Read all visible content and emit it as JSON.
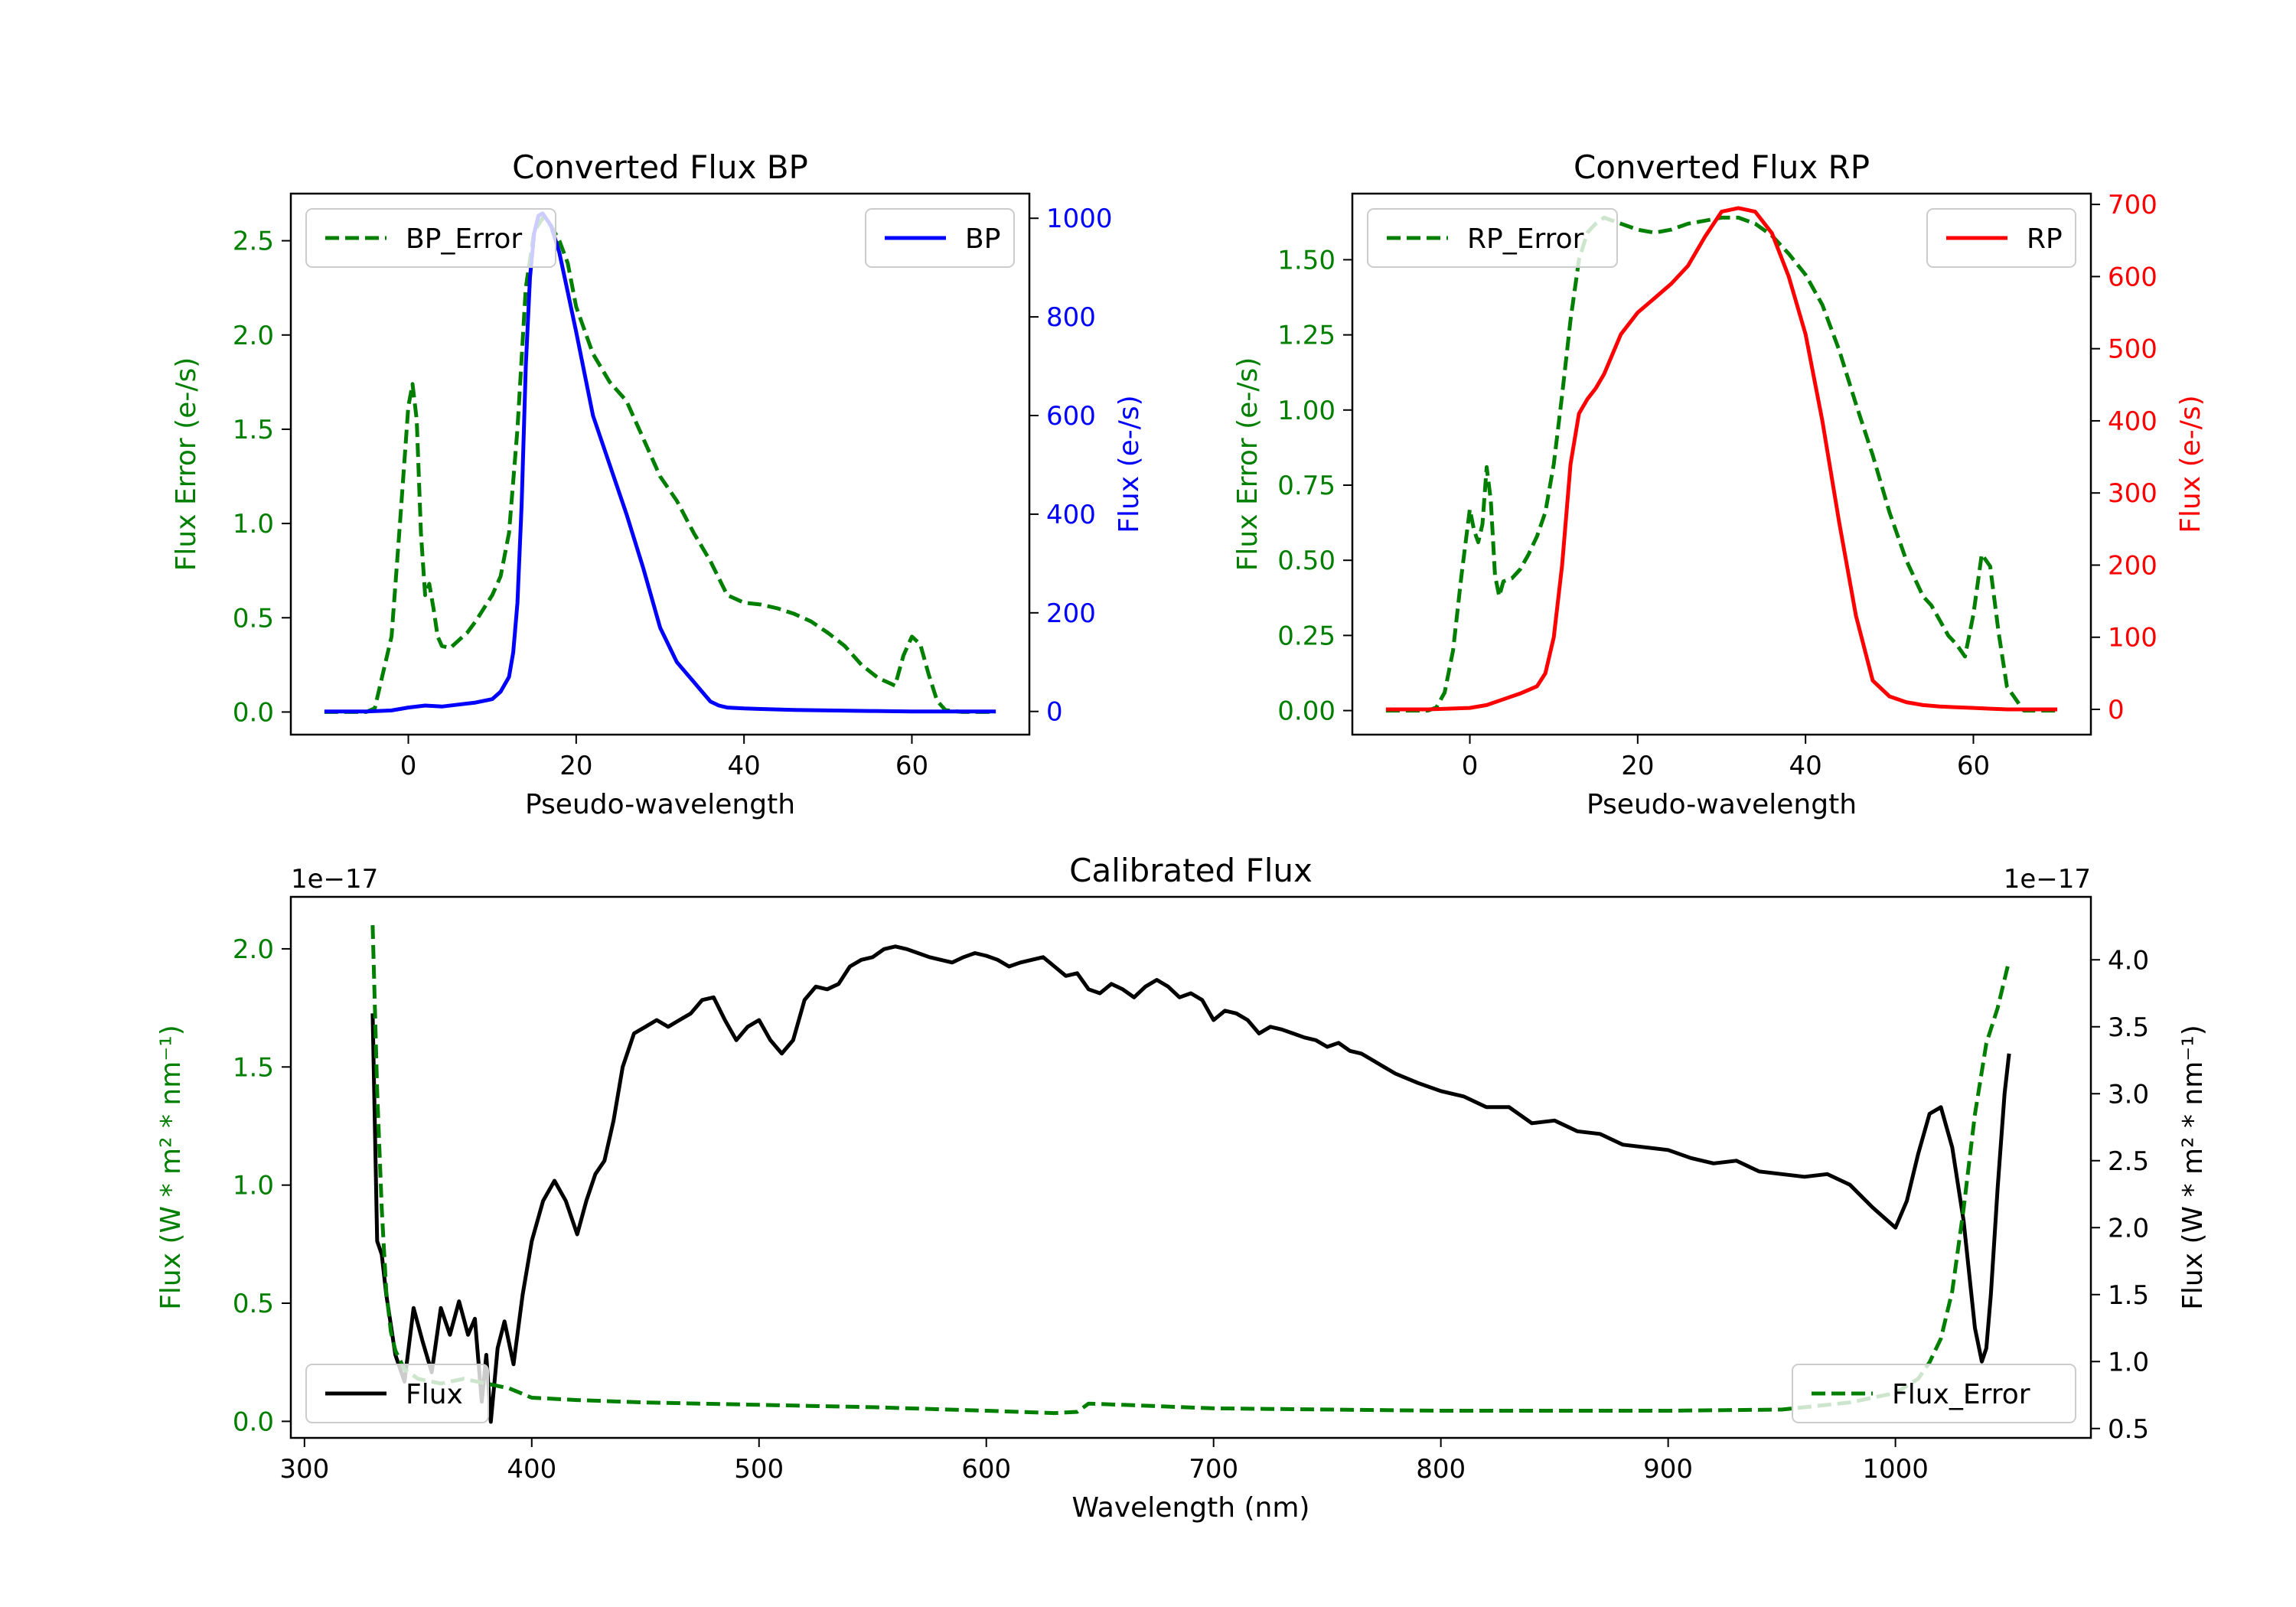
{
  "colors": {
    "error": "#007f00",
    "bp": "#0000ff",
    "rp": "#ff0000",
    "flux": "#000000"
  },
  "chart_data": [
    {
      "type": "line",
      "title": "Converted Flux BP",
      "xlabel": "Pseudo-wavelength",
      "ylabel_left": "Flux Error (e-/s)",
      "ylabel_right": "Flux (e-/s)",
      "xlim": [
        -14,
        74
      ],
      "ylim_left": [
        -0.12,
        2.75
      ],
      "ylim_right": [
        -47,
        1050
      ],
      "xticks": [
        0,
        20,
        40,
        60
      ],
      "yticks_left": [
        0.0,
        0.5,
        1.0,
        1.5,
        2.0,
        2.5
      ],
      "yticks_left_labels": [
        "0.0",
        "0.5",
        "1.0",
        "1.5",
        "2.0",
        "2.5"
      ],
      "yticks_right": [
        0,
        200,
        400,
        600,
        800,
        1000
      ],
      "series": [
        {
          "name": "BP_Error",
          "axis": "left",
          "style": "dashed",
          "color_key": "error",
          "x": [
            -10,
            -5,
            -4,
            -2,
            -1,
            0,
            0.5,
            1,
            1.5,
            2,
            2.5,
            3,
            3.5,
            4,
            5,
            6,
            7,
            8,
            10,
            11,
            12,
            13,
            14,
            15,
            16,
            17,
            18,
            19,
            20,
            22,
            24,
            26,
            28,
            30,
            32,
            34,
            36,
            38,
            40,
            42,
            44,
            46,
            48,
            50,
            52,
            54,
            56,
            57,
            58,
            59,
            60,
            61,
            62,
            63,
            64,
            66,
            70
          ],
          "values": [
            0,
            0,
            0.02,
            0.4,
            1.0,
            1.62,
            1.74,
            1.55,
            0.95,
            0.62,
            0.68,
            0.55,
            0.4,
            0.35,
            0.34,
            0.38,
            0.42,
            0.48,
            0.62,
            0.72,
            0.95,
            1.5,
            2.25,
            2.55,
            2.62,
            2.58,
            2.5,
            2.38,
            2.15,
            1.9,
            1.75,
            1.65,
            1.45,
            1.25,
            1.12,
            0.95,
            0.8,
            0.62,
            0.58,
            0.57,
            0.55,
            0.52,
            0.48,
            0.42,
            0.35,
            0.25,
            0.18,
            0.16,
            0.14,
            0.3,
            0.4,
            0.36,
            0.2,
            0.06,
            0.01,
            0,
            0
          ]
        },
        {
          "name": "BP",
          "axis": "right",
          "style": "solid",
          "color_key": "bp",
          "x": [
            -10,
            -5,
            -2,
            0,
            2,
            4,
            6,
            8,
            10,
            11,
            12,
            12.5,
            13,
            13.5,
            14,
            14.5,
            15,
            15.5,
            16,
            17,
            18,
            19,
            20,
            22,
            24,
            26,
            28,
            30,
            32,
            34,
            35,
            36,
            37,
            38,
            40,
            42,
            44,
            46,
            50,
            55,
            60,
            65,
            70
          ],
          "values": [
            0,
            0,
            2,
            8,
            12,
            10,
            14,
            18,
            25,
            40,
            70,
            120,
            220,
            420,
            700,
            880,
            970,
            1005,
            1010,
            985,
            930,
            850,
            770,
            600,
            500,
            400,
            290,
            170,
            100,
            60,
            40,
            20,
            12,
            8,
            6,
            5,
            4,
            3,
            2,
            1,
            0,
            0,
            0
          ]
        }
      ],
      "legend": [
        {
          "name": "BP_Error",
          "location": "upper-left"
        },
        {
          "name": "BP",
          "location": "upper-right"
        }
      ]
    },
    {
      "type": "line",
      "title": "Converted Flux RP",
      "xlabel": "Pseudo-wavelength",
      "ylabel_left": "Flux Error (e-/s)",
      "ylabel_right": "Flux (e-/s)",
      "xlim": [
        -14,
        74
      ],
      "ylim_left": [
        -0.08,
        1.72
      ],
      "ylim_right": [
        -35,
        715
      ],
      "xticks": [
        0,
        20,
        40,
        60
      ],
      "yticks_left": [
        0.0,
        0.25,
        0.5,
        0.75,
        1.0,
        1.25,
        1.5
      ],
      "yticks_left_labels": [
        "0.00",
        "0.25",
        "0.50",
        "0.75",
        "1.00",
        "1.25",
        "1.50"
      ],
      "yticks_right": [
        0,
        100,
        200,
        300,
        400,
        500,
        600,
        700
      ],
      "series": [
        {
          "name": "RP_Error",
          "axis": "left",
          "style": "dashed",
          "color_key": "error",
          "x": [
            -10,
            -5,
            -4,
            -3,
            -2,
            -1,
            0,
            0.5,
            1,
            1.5,
            2,
            2.5,
            3,
            3.5,
            4,
            5,
            6,
            7,
            8,
            9,
            10,
            11,
            12,
            13,
            14,
            15,
            16,
            18,
            20,
            22,
            24,
            26,
            28,
            30,
            32,
            34,
            36,
            38,
            40,
            42,
            44,
            46,
            48,
            50,
            52,
            54,
            55,
            56,
            57,
            58,
            59,
            60,
            61,
            62,
            63,
            64,
            66,
            70
          ],
          "values": [
            0,
            0,
            0.01,
            0.06,
            0.2,
            0.45,
            0.67,
            0.6,
            0.56,
            0.62,
            0.81,
            0.7,
            0.45,
            0.38,
            0.43,
            0.44,
            0.47,
            0.52,
            0.58,
            0.66,
            0.82,
            1.05,
            1.3,
            1.5,
            1.59,
            1.62,
            1.64,
            1.62,
            1.6,
            1.59,
            1.6,
            1.62,
            1.63,
            1.64,
            1.64,
            1.62,
            1.58,
            1.52,
            1.45,
            1.35,
            1.2,
            1.02,
            0.85,
            0.66,
            0.5,
            0.38,
            0.35,
            0.3,
            0.25,
            0.22,
            0.18,
            0.32,
            0.52,
            0.48,
            0.26,
            0.08,
            0,
            0
          ]
        },
        {
          "name": "RP",
          "axis": "right",
          "style": "solid",
          "color_key": "rp",
          "x": [
            -10,
            -5,
            0,
            2,
            4,
            6,
            8,
            9,
            10,
            11,
            12,
            13,
            14,
            15,
            16,
            18,
            20,
            22,
            24,
            26,
            28,
            30,
            32,
            34,
            36,
            38,
            40,
            42,
            44,
            46,
            48,
            50,
            52,
            54,
            56,
            58,
            60,
            62,
            64,
            66,
            70
          ],
          "values": [
            0,
            0,
            2,
            6,
            14,
            22,
            32,
            50,
            100,
            200,
            340,
            410,
            430,
            445,
            465,
            520,
            550,
            570,
            590,
            615,
            655,
            690,
            695,
            690,
            660,
            600,
            520,
            400,
            260,
            130,
            40,
            18,
            10,
            6,
            4,
            3,
            2,
            1,
            0,
            0,
            0
          ]
        }
      ],
      "legend": [
        {
          "name": "RP_Error",
          "location": "upper-left"
        },
        {
          "name": "RP",
          "location": "upper-right"
        }
      ]
    },
    {
      "type": "line",
      "title": "Calibrated Flux",
      "xlabel": "Wavelength (nm)",
      "ylabel_left": "Flux (W * m² * nm⁻¹)",
      "ylabel_right": "Flux (W * m² * nm⁻¹)",
      "offset_left": "1e−17",
      "offset_right": "1e−17",
      "xlim": [
        294,
        1086
      ],
      "ylim_left": [
        -0.07,
        2.22
      ],
      "ylim_right": [
        0.43,
        4.47
      ],
      "xticks": [
        300,
        400,
        500,
        600,
        700,
        800,
        900,
        1000
      ],
      "yticks_left": [
        0.0,
        0.5,
        1.0,
        1.5,
        2.0
      ],
      "yticks_left_labels": [
        "0.0",
        "0.5",
        "1.0",
        "1.5",
        "2.0"
      ],
      "yticks_right": [
        0.5,
        1.0,
        1.5,
        2.0,
        2.5,
        3.0,
        3.5,
        4.0
      ],
      "yticks_right_labels": [
        "0.5",
        "1.0",
        "1.5",
        "2.0",
        "2.5",
        "3.0",
        "3.5",
        "4.0"
      ],
      "series": [
        {
          "name": "Flux",
          "axis": "right",
          "style": "solid",
          "color_key": "flux",
          "x": [
            330,
            332,
            334,
            336,
            340,
            344,
            348,
            352,
            356,
            360,
            364,
            368,
            372,
            375,
            378,
            380,
            382,
            385,
            388,
            392,
            396,
            400,
            405,
            410,
            415,
            420,
            424,
            428,
            432,
            436,
            440,
            445,
            450,
            455,
            460,
            465,
            470,
            475,
            480,
            485,
            490,
            495,
            500,
            505,
            510,
            515,
            520,
            525,
            530,
            535,
            540,
            545,
            550,
            555,
            560,
            565,
            570,
            575,
            580,
            585,
            590,
            595,
            600,
            605,
            610,
            615,
            620,
            625,
            630,
            635,
            640,
            645,
            650,
            655,
            660,
            665,
            670,
            675,
            680,
            685,
            690,
            695,
            700,
            705,
            710,
            715,
            720,
            725,
            730,
            735,
            740,
            745,
            750,
            755,
            760,
            765,
            770,
            775,
            780,
            790,
            800,
            810,
            820,
            830,
            840,
            850,
            860,
            870,
            880,
            890,
            900,
            910,
            920,
            930,
            940,
            950,
            960,
            970,
            980,
            990,
            1000,
            1005,
            1010,
            1015,
            1020,
            1025,
            1030,
            1035,
            1038,
            1040,
            1042,
            1045,
            1048,
            1050
          ],
          "values": [
            3.6,
            1.9,
            1.8,
            1.5,
            1.05,
            0.85,
            1.4,
            1.15,
            0.92,
            1.4,
            1.2,
            1.45,
            1.2,
            1.32,
            0.7,
            1.05,
            0.55,
            1.1,
            1.3,
            0.98,
            1.5,
            1.9,
            2.2,
            2.35,
            2.2,
            1.95,
            2.2,
            2.4,
            2.5,
            2.8,
            3.2,
            3.45,
            3.5,
            3.55,
            3.5,
            3.55,
            3.6,
            3.7,
            3.72,
            3.55,
            3.4,
            3.5,
            3.55,
            3.4,
            3.3,
            3.4,
            3.7,
            3.8,
            3.78,
            3.82,
            3.95,
            4.0,
            4.02,
            4.08,
            4.1,
            4.08,
            4.05,
            4.02,
            4.0,
            3.98,
            4.02,
            4.05,
            4.03,
            4.0,
            3.95,
            3.98,
            4.0,
            4.02,
            3.95,
            3.88,
            3.9,
            3.78,
            3.75,
            3.82,
            3.78,
            3.72,
            3.8,
            3.85,
            3.8,
            3.72,
            3.75,
            3.7,
            3.55,
            3.62,
            3.6,
            3.55,
            3.45,
            3.5,
            3.48,
            3.45,
            3.42,
            3.4,
            3.35,
            3.38,
            3.32,
            3.3,
            3.25,
            3.2,
            3.15,
            3.08,
            3.02,
            2.98,
            2.9,
            2.9,
            2.78,
            2.8,
            2.72,
            2.7,
            2.62,
            2.6,
            2.58,
            2.52,
            2.48,
            2.5,
            2.42,
            2.4,
            2.38,
            2.4,
            2.32,
            2.15,
            2.0,
            2.2,
            2.55,
            2.85,
            2.9,
            2.6,
            2.05,
            1.25,
            1.0,
            1.1,
            1.5,
            2.3,
            3.0,
            3.3
          ]
        },
        {
          "name": "Flux_Error",
          "axis": "left",
          "style": "dashed",
          "color_key": "error",
          "x": [
            330,
            332,
            334,
            336,
            338,
            340,
            344,
            350,
            360,
            370,
            380,
            390,
            400,
            420,
            450,
            500,
            550,
            600,
            630,
            640,
            645,
            660,
            700,
            800,
            900,
            950,
            980,
            1000,
            1010,
            1015,
            1020,
            1025,
            1030,
            1035,
            1040,
            1045,
            1050
          ],
          "values": [
            2.1,
            1.4,
            0.9,
            0.55,
            0.38,
            0.3,
            0.22,
            0.18,
            0.16,
            0.18,
            0.16,
            0.14,
            0.1,
            0.09,
            0.08,
            0.07,
            0.06,
            0.045,
            0.035,
            0.04,
            0.075,
            0.07,
            0.055,
            0.045,
            0.045,
            0.05,
            0.08,
            0.12,
            0.18,
            0.25,
            0.35,
            0.55,
            0.9,
            1.3,
            1.6,
            1.75,
            1.95
          ]
        }
      ],
      "legend": [
        {
          "name": "Flux",
          "location": "lower-left"
        },
        {
          "name": "Flux_Error",
          "location": "lower-right"
        }
      ]
    }
  ]
}
